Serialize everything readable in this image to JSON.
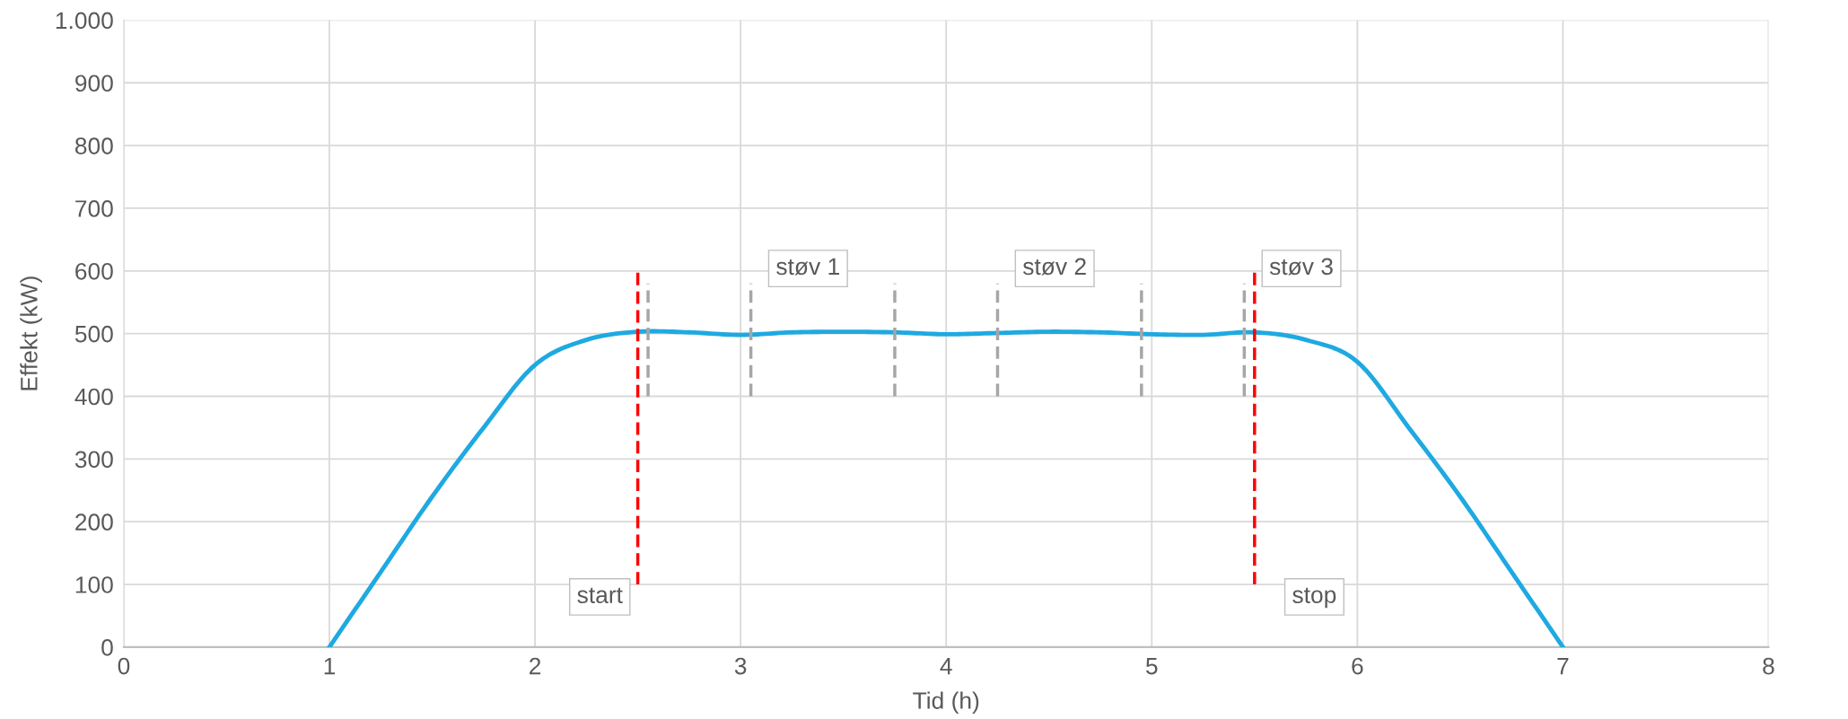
{
  "chart_data": {
    "type": "line",
    "xlabel": "Tid (h)",
    "ylabel": "Effekt (kW)",
    "xlim": [
      0,
      8
    ],
    "xticks": [
      0,
      1,
      2,
      3,
      4,
      5,
      6,
      7,
      8
    ],
    "ylim": [
      0,
      1000
    ],
    "yticks": [
      0,
      100,
      200,
      300,
      400,
      500,
      600,
      700,
      800,
      900,
      {
        "value": 1000,
        "label": "1.000"
      }
    ],
    "grid": true,
    "marker": "none",
    "series": [
      {
        "color": "#1fa9e1",
        "line_style": "solid",
        "x": [
          1,
          1.25,
          1.5,
          1.75,
          2,
          2.25,
          2.5,
          2.75,
          3,
          3.25,
          3.5,
          3.75,
          4,
          4.25,
          4.5,
          4.75,
          5,
          5.25,
          5.5,
          5.75,
          6,
          6.25,
          6.5,
          6.75,
          7
        ],
        "values": [
          0,
          120,
          240,
          350,
          450,
          490,
          503,
          502,
          498,
          502,
          503,
          502,
          499,
          501,
          503,
          502,
          499,
          498,
          502,
          490,
          455,
          350,
          240,
          120,
          0
        ]
      },
      {
        "color": "#ff0000",
        "line_style": "dashed",
        "x": [
          2.5,
          2.5
        ],
        "values": [
          100,
          600
        ]
      },
      {
        "color": "#ff0000",
        "line_style": "dashed",
        "x": [
          5.5,
          5.5
        ],
        "values": [
          100,
          600
        ]
      },
      {
        "color": "#a6a6a6",
        "line_style": "dashed",
        "x": [
          2.55,
          2.55
        ],
        "values": [
          400,
          580
        ]
      },
      {
        "color": "#a6a6a6",
        "line_style": "dashed",
        "x": [
          3.05,
          3.05
        ],
        "values": [
          400,
          580
        ]
      },
      {
        "color": "#a6a6a6",
        "line_style": "dashed",
        "x": [
          3.75,
          3.75
        ],
        "values": [
          400,
          580
        ]
      },
      {
        "color": "#a6a6a6",
        "line_style": "dashed",
        "x": [
          4.25,
          4.25
        ],
        "values": [
          400,
          580
        ]
      },
      {
        "color": "#a6a6a6",
        "line_style": "dashed",
        "x": [
          4.95,
          4.95
        ],
        "values": [
          400,
          580
        ]
      },
      {
        "color": "#a6a6a6",
        "line_style": "dashed",
        "x": [
          5.45,
          5.45
        ],
        "values": [
          400,
          580
        ]
      }
    ],
    "annotations": [
      {
        "text": "start",
        "x": 2.5,
        "y": 100
      },
      {
        "text": "stop",
        "x": 5.5,
        "y": 100
      },
      {
        "text": "støv 1",
        "x": 3.05,
        "y": 580
      },
      {
        "text": "støv 2",
        "x": 4.25,
        "y": 580
      },
      {
        "text": "støv 3",
        "x": 5.45,
        "y": 580
      }
    ]
  }
}
